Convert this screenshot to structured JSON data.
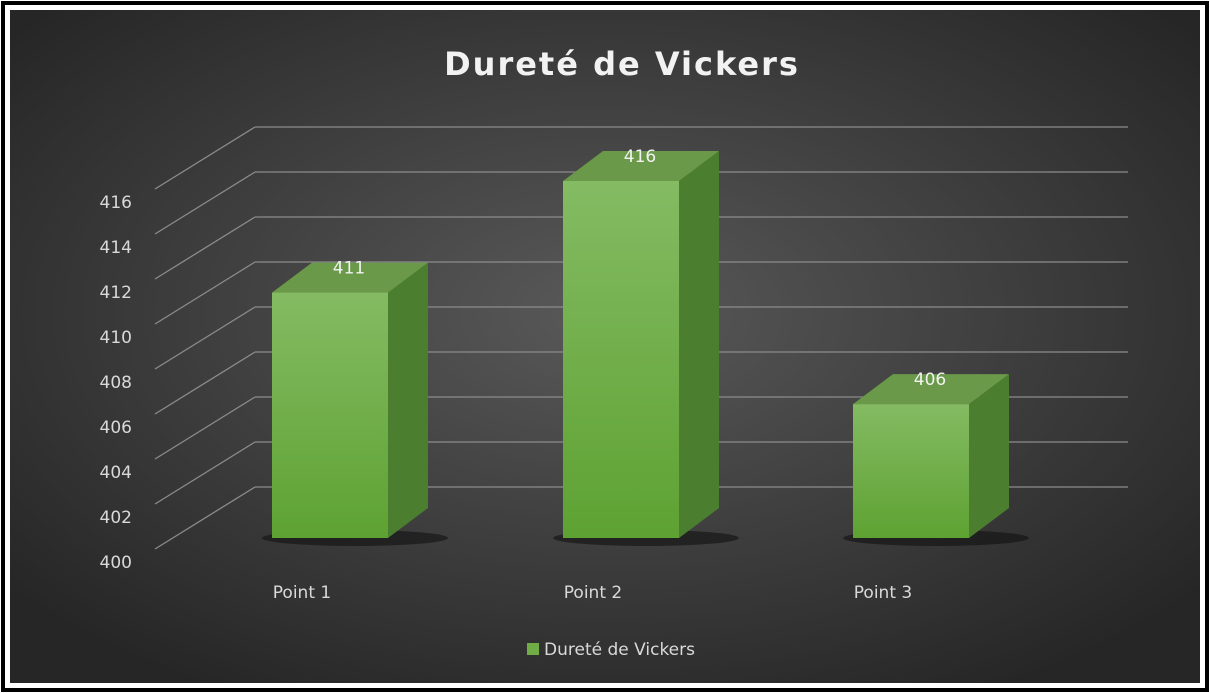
{
  "chart_data": {
    "type": "bar",
    "title": "Dureté de Vickers",
    "categories": [
      "Point 1",
      "Point 2",
      "Point 3"
    ],
    "series": [
      {
        "name": "Dureté de Vickers",
        "color": "#70ad47",
        "values": [
          411,
          416,
          406
        ]
      }
    ],
    "ylim": [
      400,
      416
    ],
    "yticks": [
      400,
      402,
      404,
      406,
      408,
      410,
      412,
      414,
      416
    ],
    "grid": true,
    "legend": "bottom"
  }
}
